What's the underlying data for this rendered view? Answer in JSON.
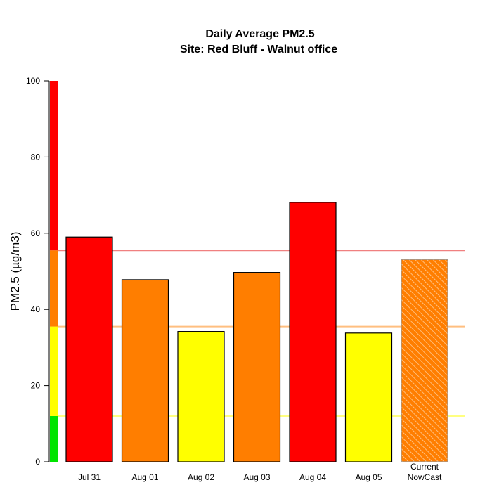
{
  "chart_data": {
    "type": "bar",
    "title": "Daily Average PM2.5",
    "subtitle": "Site: Red Bluff - Walnut office",
    "xlabel": "",
    "ylabel": "PM2.5 (µg/m3)",
    "ylim": [
      0,
      100
    ],
    "yticks": [
      0,
      20,
      40,
      60,
      80,
      100
    ],
    "categories": [
      "Jul 31",
      "Aug 01",
      "Aug 02",
      "Aug 03",
      "Aug 04",
      "Aug 05",
      "Current\nNowCast"
    ],
    "values": [
      59,
      47.8,
      34.2,
      49.7,
      68.1,
      33.8,
      53.1
    ],
    "bar_colors": [
      "#ff0000",
      "#ff7e00",
      "#ffff00",
      "#ff7e00",
      "#ff0000",
      "#ffff00",
      "#ff7e00"
    ],
    "hatched": [
      false,
      false,
      false,
      false,
      false,
      false,
      true
    ],
    "aqi_scale": [
      {
        "from": 0,
        "to": 12,
        "color": "#00e400"
      },
      {
        "from": 12,
        "to": 35.5,
        "color": "#ffff00"
      },
      {
        "from": 35.5,
        "to": 55.5,
        "color": "#ff7e00"
      },
      {
        "from": 55.5,
        "to": 100,
        "color": "#ff0000"
      }
    ],
    "threshold_lines": [
      {
        "value": 12,
        "color": "#ffff80"
      },
      {
        "value": 35.5,
        "color": "#ffbf80"
      },
      {
        "value": 55.5,
        "color": "#f08080"
      }
    ],
    "grid": false,
    "legend": "none"
  }
}
